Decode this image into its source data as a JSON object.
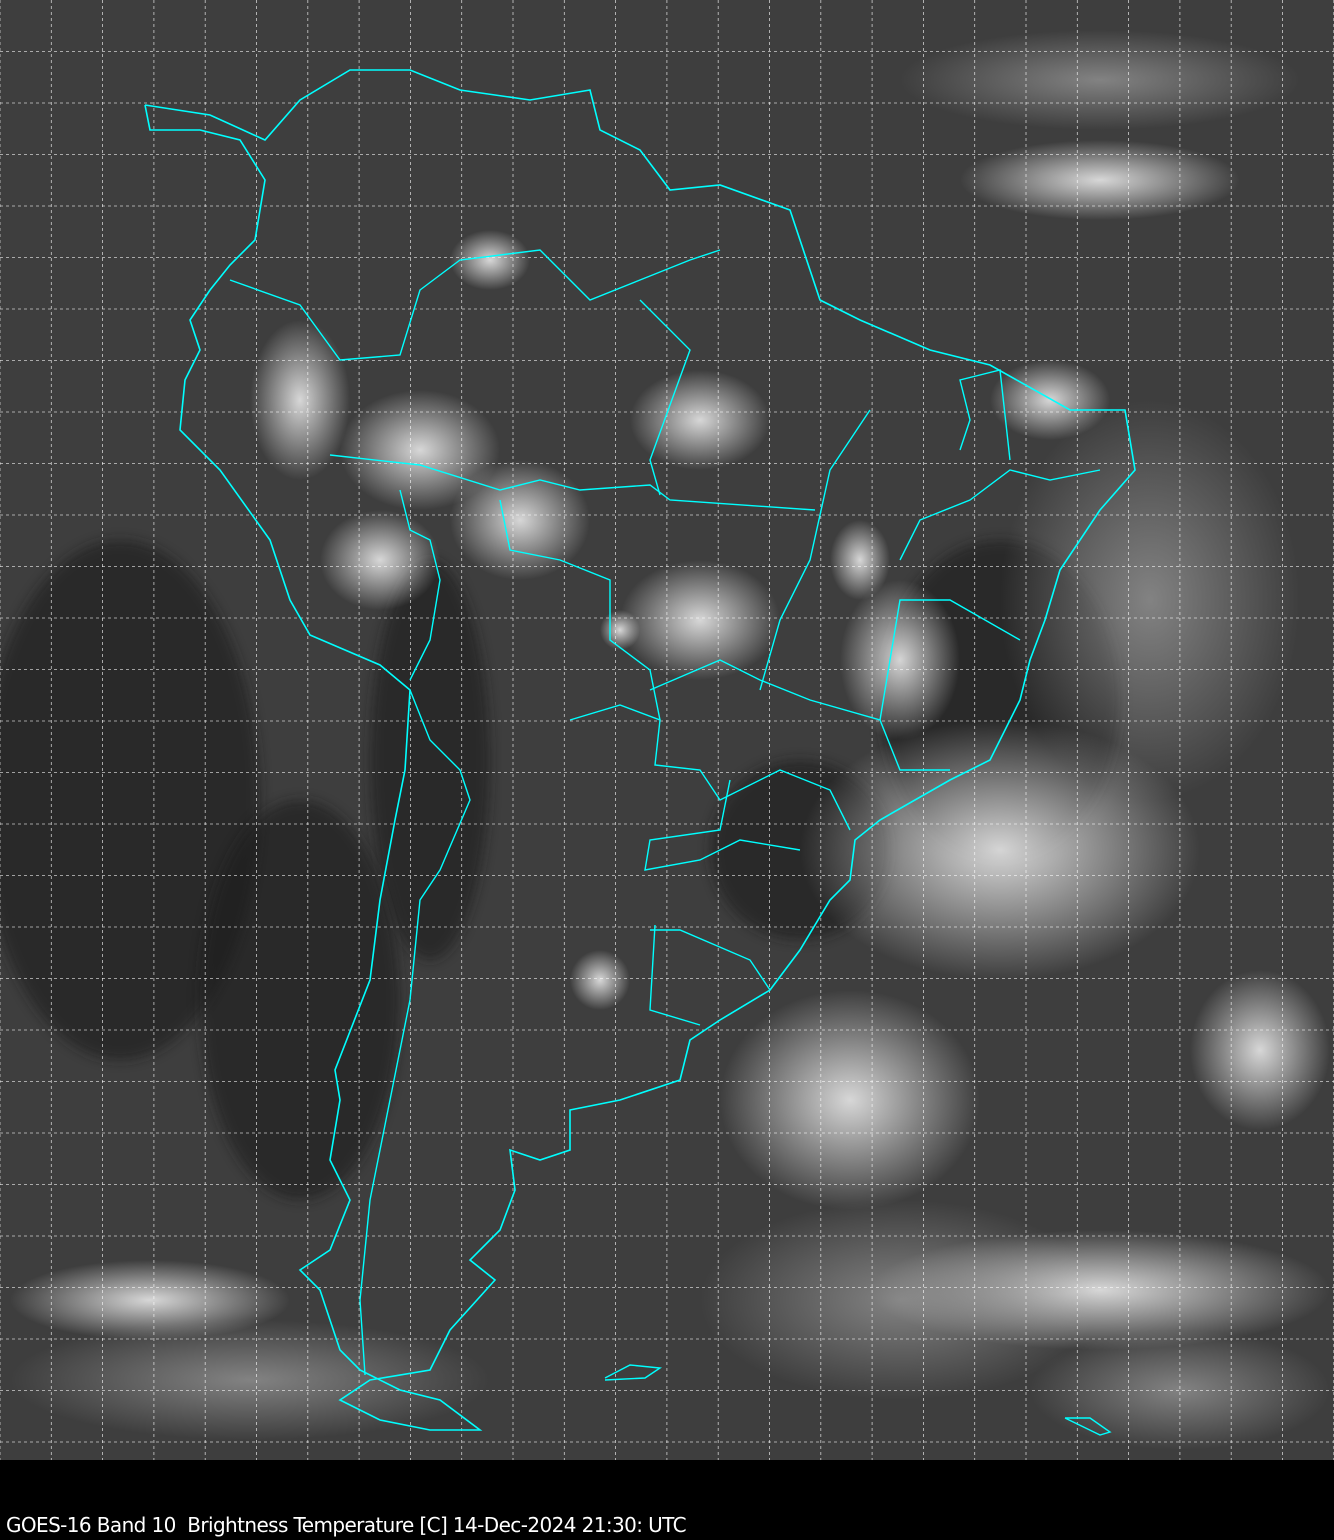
{
  "caption": "GOES-16 Band 10  Brightness Temperature [C] 14-Dec-2024 21:30: UTC",
  "map": {
    "product": "satellite infrared imagery",
    "region": "South America",
    "colormap": "grayscale",
    "colors": {
      "coastline": "#00ffff",
      "grid": "#ffffff",
      "background": "#000000"
    },
    "grid": true
  }
}
